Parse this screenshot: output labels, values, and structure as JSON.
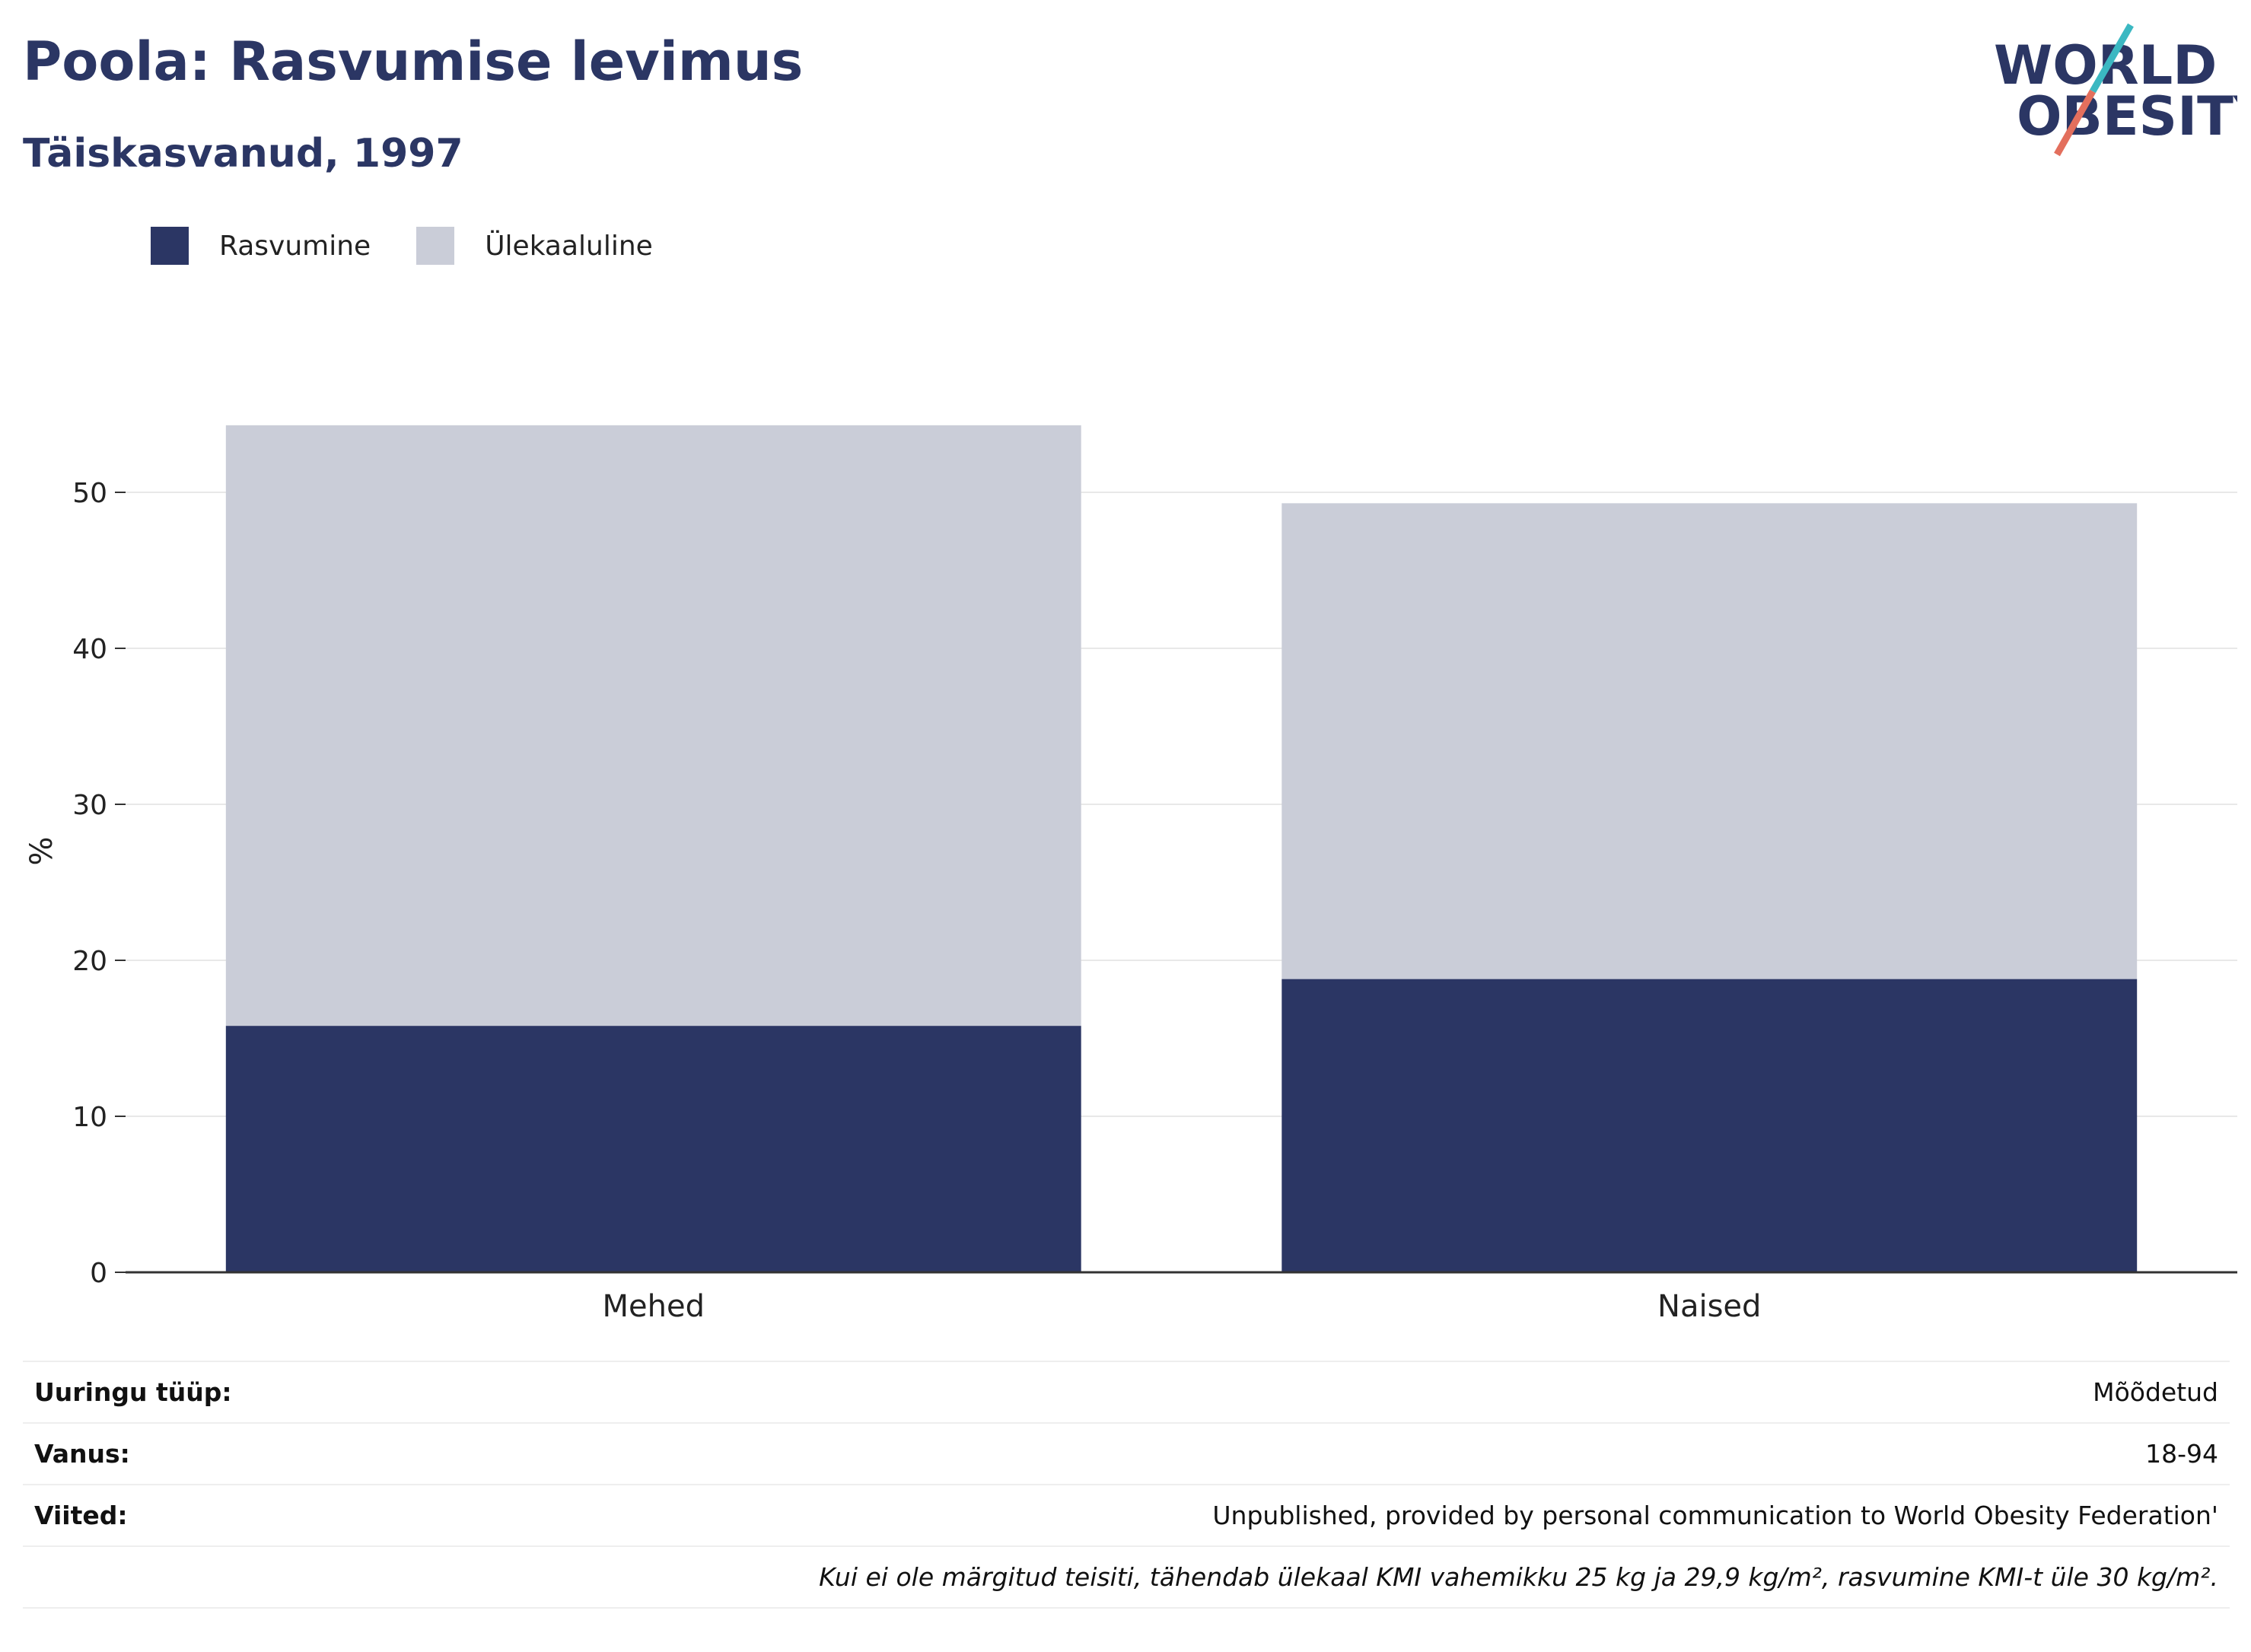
{
  "header": {
    "title": "Poola: Rasvumise levimus",
    "subtitle": "Täiskasvanud, 1997"
  },
  "logo": {
    "line1": "WORLD",
    "line2": "OBESITY"
  },
  "colors": {
    "obesity": "#2b3664",
    "overweight": "#cacdd8",
    "axis": "#333333",
    "grid": "#e8e8e8",
    "logo_text": "#2b3664",
    "logo_teal": "#3bb8c2",
    "logo_coral": "#e36f5d"
  },
  "chart_data": {
    "type": "bar",
    "stacked": true,
    "categories": [
      "Mehed",
      "Naised"
    ],
    "series": [
      {
        "name": "Rasvumine",
        "values": [
          15.8,
          18.8
        ]
      },
      {
        "name": "Ülekaaluline",
        "values": [
          38.5,
          30.5
        ]
      }
    ],
    "title": "Poola: Rasvumise levimus",
    "subtitle": "Täiskasvanud, 1997",
    "xlabel": "",
    "ylabel": "%",
    "ylim": [
      0,
      58
    ],
    "yticks": [
      0,
      10,
      20,
      30,
      40,
      50
    ],
    "grid": true,
    "legend_position": "top-left"
  },
  "info": {
    "rows": [
      {
        "label": "Uuringu tüüp:",
        "value": "Mõõdetud"
      },
      {
        "label": "Vanus:",
        "value": "18-94"
      },
      {
        "label": "Viited:",
        "value": "Unpublished, provided by personal communication to World Obesity Federation'"
      }
    ],
    "note": "Kui ei ole märgitud teisiti, tähendab ülekaal KMI vahemikku 25 kg ja 29,9 kg/m², rasvumine KMI-t üle 30 kg/m²."
  }
}
